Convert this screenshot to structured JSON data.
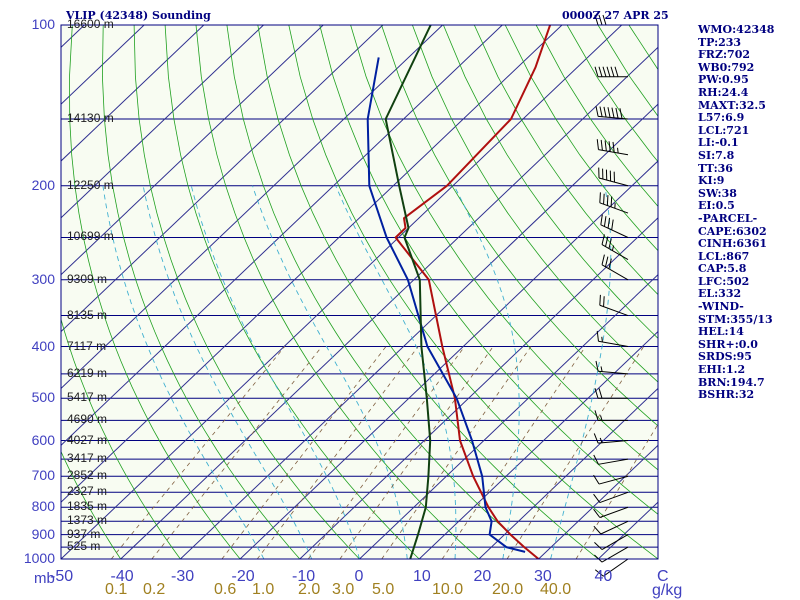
{
  "header": {
    "title_left": "VLIP (42348) Sounding",
    "title_right": "0000Z 27 APR 25"
  },
  "indices": [
    "WMO:42348",
    "TP:233",
    "FRZ:702",
    "WB0:792",
    "PW:0.95",
    "RH:24.4",
    "MAXT:32.5",
    "L57:6.9",
    "LCL:721",
    "LI:-0.1",
    "SI:7.8",
    "TT:36",
    "KI:9",
    "SW:38",
    "EI:0.5",
    "-PARCEL-",
    "CAPE:6302",
    "CINH:6361",
    "LCL:867",
    "CAP:5.8",
    "LFC:502",
    "EL:332",
    "-WIND-",
    "STM:355/13",
    "HEL:14",
    "SHR+:0.0",
    "SRDS:95",
    "EHI:1.2",
    "BRN:194.7",
    "BSHR:32"
  ],
  "chart_data": {
    "type": "line",
    "diagram": "skew-T log-P",
    "pressure_range_mb": [
      1000,
      100
    ],
    "temperature_range_c": [
      -50,
      50
    ],
    "pressure_ticks": [
      "100",
      "200",
      "300",
      "400",
      "500",
      "600",
      "700",
      "800",
      "900",
      "1000"
    ],
    "temperature_ticks": [
      "-50",
      "-40",
      "-30",
      "-20",
      "-10",
      "0",
      "10",
      "20",
      "30",
      "40",
      "C"
    ],
    "mixing_ratio_ticks": [
      "0.1",
      "0.2",
      "0.6",
      "1.0",
      "2.0",
      "3.0",
      "5.0",
      "10.0",
      "20.0",
      "40.0",
      "g/kg"
    ],
    "pressure_unit": "mb",
    "mixing_ratio_unit": "g/kg",
    "height_labels": [
      {
        "p": 100,
        "label": "16600 m"
      },
      {
        "p": 150,
        "label": "14130 m"
      },
      {
        "p": 200,
        "label": "12250 m"
      },
      {
        "p": 250,
        "label": "10699 m"
      },
      {
        "p": 300,
        "label": "9309 m"
      },
      {
        "p": 350,
        "label": "8135 m"
      },
      {
        "p": 400,
        "label": "7117 m"
      },
      {
        "p": 450,
        "label": "6219 m"
      },
      {
        "p": 500,
        "label": "5417 m"
      },
      {
        "p": 550,
        "label": "4690 m"
      },
      {
        "p": 600,
        "label": "4027 m"
      },
      {
        "p": 650,
        "label": "3417 m"
      },
      {
        "p": 700,
        "label": "2852 m"
      },
      {
        "p": 750,
        "label": "2327 m"
      },
      {
        "p": 800,
        "label": "1835 m"
      },
      {
        "p": 850,
        "label": "1373 m"
      },
      {
        "p": 900,
        "label": "937 m"
      },
      {
        "p": 950,
        "label": "525 m"
      }
    ],
    "series": [
      {
        "color": "#b01010",
        "points": [
          [
            1000,
            30.0
          ],
          [
            950,
            25.5
          ],
          [
            900,
            21.0
          ],
          [
            850,
            16.5
          ],
          [
            800,
            12.5
          ],
          [
            700,
            4.5
          ],
          [
            600,
            -4.0
          ],
          [
            500,
            -12.3
          ],
          [
            400,
            -23.5
          ],
          [
            300,
            -37.5
          ],
          [
            250,
            -50.5
          ],
          [
            240,
            -50.5
          ],
          [
            230,
            -52.5
          ],
          [
            200,
            -51.0
          ],
          [
            150,
            -52.0
          ],
          [
            120,
            -57.0
          ],
          [
            100,
            -62.0
          ]
        ]
      },
      {
        "color": "#0020a0",
        "points": [
          [
            970,
            26.5
          ],
          [
            950,
            22.5
          ],
          [
            900,
            17.5
          ],
          [
            850,
            15.5
          ],
          [
            800,
            12.0
          ],
          [
            700,
            6.0
          ],
          [
            600,
            -2.0
          ],
          [
            500,
            -12.0
          ],
          [
            400,
            -26.0
          ],
          [
            300,
            -41.0
          ],
          [
            250,
            -52.0
          ],
          [
            200,
            -64.0
          ],
          [
            150,
            -76.0
          ],
          [
            115,
            -85.0
          ]
        ]
      },
      {
        "color": "#104010",
        "points": [
          [
            1000,
            8.5
          ],
          [
            900,
            5.5
          ],
          [
            800,
            2.0
          ],
          [
            700,
            -3.0
          ],
          [
            600,
            -9.0
          ],
          [
            500,
            -17.0
          ],
          [
            400,
            -27.0
          ],
          [
            300,
            -39.0
          ],
          [
            250,
            -49.0
          ],
          [
            240,
            -50.0
          ],
          [
            200,
            -59.0
          ],
          [
            150,
            -73.0
          ],
          [
            100,
            -82.0
          ]
        ]
      }
    ],
    "winds": [
      {
        "p": 100,
        "dir": 270,
        "spd": 30
      },
      {
        "p": 125,
        "dir": 270,
        "spd": 60
      },
      {
        "p": 150,
        "dir": 275,
        "spd": 70
      },
      {
        "p": 175,
        "dir": 280,
        "spd": 55
      },
      {
        "p": 200,
        "dir": 285,
        "spd": 50
      },
      {
        "p": 225,
        "dir": 290,
        "spd": 45
      },
      {
        "p": 250,
        "dir": 295,
        "spd": 40
      },
      {
        "p": 275,
        "dir": 300,
        "spd": 35
      },
      {
        "p": 300,
        "dir": 300,
        "spd": 30
      },
      {
        "p": 350,
        "dir": 290,
        "spd": 20
      },
      {
        "p": 400,
        "dir": 280,
        "spd": 15
      },
      {
        "p": 450,
        "dir": 275,
        "spd": 15
      },
      {
        "p": 500,
        "dir": 270,
        "spd": 20
      },
      {
        "p": 550,
        "dir": 270,
        "spd": 15
      },
      {
        "p": 600,
        "dir": 265,
        "spd": 15
      },
      {
        "p": 650,
        "dir": 260,
        "spd": 10
      },
      {
        "p": 700,
        "dir": 255,
        "spd": 10
      },
      {
        "p": 750,
        "dir": 250,
        "spd": 10
      },
      {
        "p": 800,
        "dir": 250,
        "spd": 10
      },
      {
        "p": 850,
        "dir": 245,
        "spd": 10
      },
      {
        "p": 900,
        "dir": 240,
        "spd": 10
      },
      {
        "p": 950,
        "dir": 240,
        "spd": 10
      },
      {
        "p": 1000,
        "dir": 235,
        "spd": 10
      }
    ],
    "colors": {
      "isobar": "#000080",
      "isotherm": "#303090",
      "dry_adiabat": "#20a020",
      "moist_adiabat": "#40b0d0",
      "mixing_ratio": "#806040",
      "background": "#f8fcf2"
    }
  }
}
